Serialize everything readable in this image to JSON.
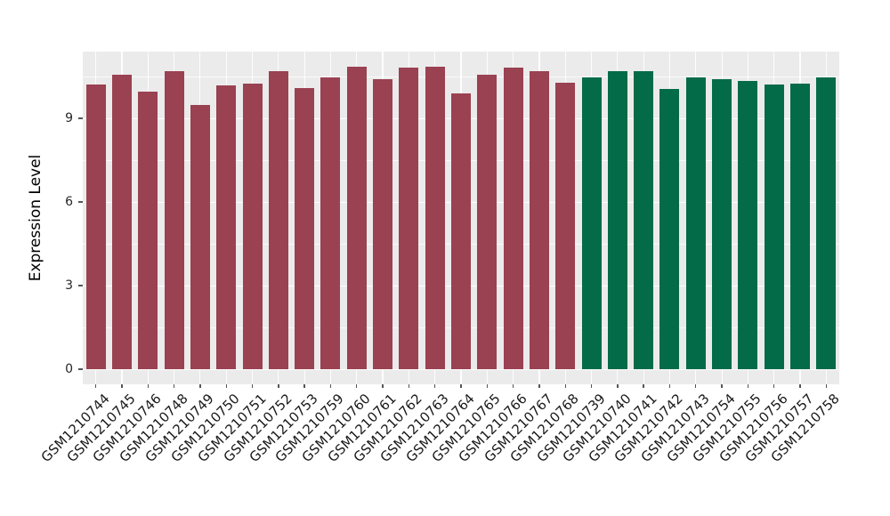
{
  "chart_data": {
    "type": "bar",
    "title": "",
    "xlabel": "",
    "ylabel": "Expression Level",
    "ylim": [
      0,
      11.4
    ],
    "yticks": [
      0,
      3,
      6,
      9
    ],
    "yminorticks": [
      1.5,
      4.5,
      7.5,
      10.5
    ],
    "grid": true,
    "legend": false,
    "panel_background": "#EBEBEB",
    "gridline_color": "#ffffff",
    "tick_color": "#555555",
    "group_colors": {
      "maroon": "#9A4152",
      "green": "#046B48"
    },
    "bars": [
      {
        "label": "GSM1210744",
        "value": 10.2,
        "group": "maroon"
      },
      {
        "label": "GSM1210745",
        "value": 10.57,
        "group": "maroon"
      },
      {
        "label": "GSM1210746",
        "value": 9.95,
        "group": "maroon"
      },
      {
        "label": "GSM1210748",
        "value": 10.7,
        "group": "maroon"
      },
      {
        "label": "GSM1210749",
        "value": 9.47,
        "group": "maroon"
      },
      {
        "label": "GSM1210750",
        "value": 10.17,
        "group": "maroon"
      },
      {
        "label": "GSM1210751",
        "value": 10.24,
        "group": "maroon"
      },
      {
        "label": "GSM1210752",
        "value": 10.7,
        "group": "maroon"
      },
      {
        "label": "GSM1210753",
        "value": 10.1,
        "group": "maroon"
      },
      {
        "label": "GSM1210759",
        "value": 10.48,
        "group": "maroon"
      },
      {
        "label": "GSM1210760",
        "value": 10.86,
        "group": "maroon"
      },
      {
        "label": "GSM1210761",
        "value": 10.42,
        "group": "maroon"
      },
      {
        "label": "GSM1210762",
        "value": 10.81,
        "group": "maroon"
      },
      {
        "label": "GSM1210763",
        "value": 10.86,
        "group": "maroon"
      },
      {
        "label": "GSM1210764",
        "value": 9.9,
        "group": "maroon"
      },
      {
        "label": "GSM1210765",
        "value": 10.56,
        "group": "maroon"
      },
      {
        "label": "GSM1210766",
        "value": 10.83,
        "group": "maroon"
      },
      {
        "label": "GSM1210767",
        "value": 10.69,
        "group": "maroon"
      },
      {
        "label": "GSM1210768",
        "value": 10.28,
        "group": "maroon"
      },
      {
        "label": "GSM1210739",
        "value": 10.47,
        "group": "green"
      },
      {
        "label": "GSM1210740",
        "value": 10.69,
        "group": "green"
      },
      {
        "label": "GSM1210741",
        "value": 10.7,
        "group": "green"
      },
      {
        "label": "GSM1210742",
        "value": 10.07,
        "group": "green"
      },
      {
        "label": "GSM1210743",
        "value": 10.47,
        "group": "green"
      },
      {
        "label": "GSM1210754",
        "value": 10.39,
        "group": "green"
      },
      {
        "label": "GSM1210755",
        "value": 10.35,
        "group": "green"
      },
      {
        "label": "GSM1210756",
        "value": 10.21,
        "group": "green"
      },
      {
        "label": "GSM1210757",
        "value": 10.26,
        "group": "green"
      },
      {
        "label": "GSM1210758",
        "value": 10.48,
        "group": "green"
      }
    ]
  }
}
